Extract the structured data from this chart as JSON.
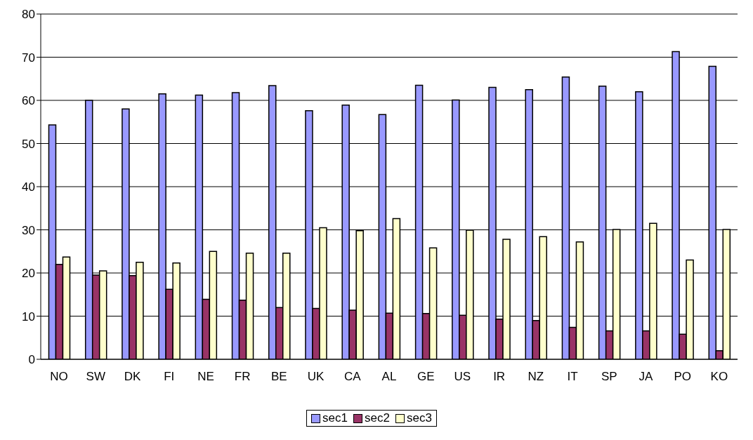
{
  "chart_data": {
    "type": "bar",
    "categories": [
      "NO",
      "SW",
      "DK",
      "FI",
      "NE",
      "FR",
      "BE",
      "UK",
      "CA",
      "AL",
      "GE",
      "US",
      "IR",
      "NZ",
      "IT",
      "SP",
      "JA",
      "PO",
      "KO"
    ],
    "series": [
      {
        "name": "sec1",
        "color": "#9999ff",
        "values": [
          54.3,
          60,
          58,
          61.5,
          61.2,
          61.8,
          63.4,
          57.6,
          58.9,
          56.7,
          63.5,
          60.1,
          63,
          62.5,
          65.4,
          63.3,
          62,
          71.3,
          67.9
        ]
      },
      {
        "name": "sec2",
        "color": "#993366",
        "values": [
          22,
          19.5,
          19.4,
          16.2,
          13.9,
          13.7,
          12,
          11.8,
          11.4,
          10.7,
          10.6,
          10.2,
          9.3,
          9,
          7.4,
          6.6,
          6.6,
          5.8,
          2
        ]
      },
      {
        "name": "sec3",
        "color": "#ffffcc",
        "values": [
          23.7,
          20.5,
          22.5,
          22.3,
          25,
          24.6,
          24.6,
          30.5,
          29.8,
          32.6,
          25.8,
          29.9,
          27.8,
          28.4,
          27.2,
          30.1,
          31.5,
          23,
          30.1
        ]
      }
    ],
    "ylim": [
      0,
      80
    ],
    "yticks": [
      0,
      10,
      20,
      30,
      40,
      50,
      60,
      70,
      80
    ],
    "grid": "y",
    "legend": "bottom"
  }
}
